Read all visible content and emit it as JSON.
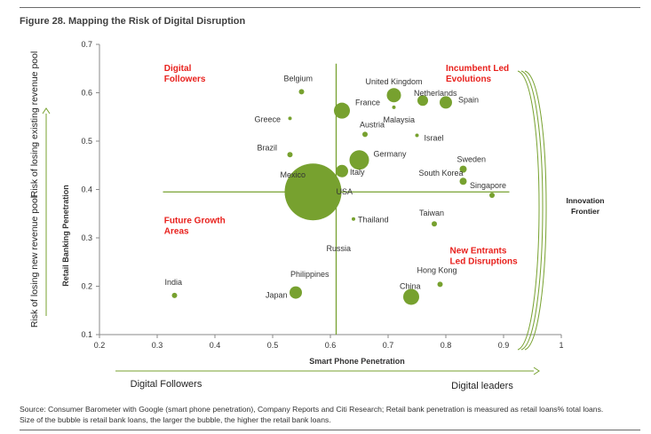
{
  "figure_title": "Figure 28. Mapping the Risk of Digital Disruption",
  "source_lines": [
    "Source: Consumer Barometer with Google (smart phone penetration), Company Reports and Citi Research; Retail bank penetration is measured as retail loans% total loans.",
    "Size of the bubble is retail bank loans, the larger the bubble, the higher the retail bank loans."
  ],
  "colors": {
    "bubble": "#77a12f",
    "crosshair": "#77a12f",
    "quadrant_text": "#e8201c",
    "bracket": "#77a12f"
  },
  "chart_data": {
    "type": "scatter",
    "xlabel": "Smart Phone Penetration",
    "ylabel": "Retail Banking Penetration",
    "xlim": [
      0.2,
      1.0
    ],
    "ylim": [
      0.1,
      0.7
    ],
    "x_ticks": [
      "0.2",
      "0.3",
      "0.4",
      "0.5",
      "0.6",
      "0.7",
      "0.8",
      "0.9",
      "1"
    ],
    "y_ticks": [
      "0.1",
      "0.2",
      "0.3",
      "0.4",
      "0.5",
      "0.6",
      "0.7"
    ],
    "crosshair": {
      "x": 0.61,
      "y": 0.395
    },
    "outer_x_axis": {
      "left": "Digital Followers",
      "right": "Digital leaders"
    },
    "outer_y_axis": {
      "lower": "Risk of losing new revenue pool",
      "upper": "Risk of losing existing revenue pool"
    },
    "quadrant_labels": [
      {
        "text": [
          "Digital",
          "Followers"
        ],
        "x": 0.312,
        "y": 0.645
      },
      {
        "text": [
          "Incumbent Led",
          "Evolutions"
        ],
        "x": 0.8,
        "y": 0.645
      },
      {
        "text": [
          "Future Growth",
          "Areas"
        ],
        "x": 0.312,
        "y": 0.33
      },
      {
        "text": [
          "New Entrants",
          "Led Disruptions"
        ],
        "x": 0.807,
        "y": 0.268
      }
    ],
    "bracket_label": [
      "Innovation",
      "Frontier"
    ],
    "points": [
      {
        "name": "Belgium",
        "x": 0.55,
        "y": 0.602,
        "size": 3
      },
      {
        "name": "United Kingdom",
        "x": 0.71,
        "y": 0.595,
        "size": 8
      },
      {
        "name": "Netherlands",
        "x": 0.76,
        "y": 0.584,
        "size": 6
      },
      {
        "name": "Spain",
        "x": 0.8,
        "y": 0.58,
        "size": 7
      },
      {
        "name": "France",
        "x": 0.62,
        "y": 0.563,
        "size": 9
      },
      {
        "name": "Greece",
        "x": 0.53,
        "y": 0.547,
        "size": 2
      },
      {
        "name": "Malaysia",
        "x": 0.71,
        "y": 0.57,
        "size": 2
      },
      {
        "name": "Israel",
        "x": 0.75,
        "y": 0.512,
        "size": 2
      },
      {
        "name": "Austria",
        "x": 0.66,
        "y": 0.514,
        "size": 3
      },
      {
        "name": "Brazil",
        "x": 0.53,
        "y": 0.472,
        "size": 3
      },
      {
        "name": "Germany",
        "x": 0.65,
        "y": 0.461,
        "size": 11
      },
      {
        "name": "Italy",
        "x": 0.62,
        "y": 0.438,
        "size": 7
      },
      {
        "name": "Sweden",
        "x": 0.83,
        "y": 0.442,
        "size": 4
      },
      {
        "name": "South Korea",
        "x": 0.83,
        "y": 0.417,
        "size": 4
      },
      {
        "name": "Singapore",
        "x": 0.88,
        "y": 0.388,
        "size": 3
      },
      {
        "name": "Mexico",
        "x": 0.57,
        "y": 0.395,
        "size": 32
      },
      {
        "name": "USA",
        "x": 0.61,
        "y": 0.395,
        "size": 0
      },
      {
        "name": "Thailand",
        "x": 0.64,
        "y": 0.339,
        "size": 2
      },
      {
        "name": "Taiwan",
        "x": 0.78,
        "y": 0.329,
        "size": 3
      },
      {
        "name": "Russia",
        "x": 0.61,
        "y": 0.3,
        "size": 0
      },
      {
        "name": "India",
        "x": 0.33,
        "y": 0.181,
        "size": 3
      },
      {
        "name": "Philippines",
        "x": 0.54,
        "y": 0.19,
        "size": 0
      },
      {
        "name": "Japan",
        "x": 0.54,
        "y": 0.187,
        "size": 7
      },
      {
        "name": "Hong Kong",
        "x": 0.79,
        "y": 0.204,
        "size": 3
      },
      {
        "name": "China",
        "x": 0.74,
        "y": 0.178,
        "size": 9
      }
    ]
  }
}
